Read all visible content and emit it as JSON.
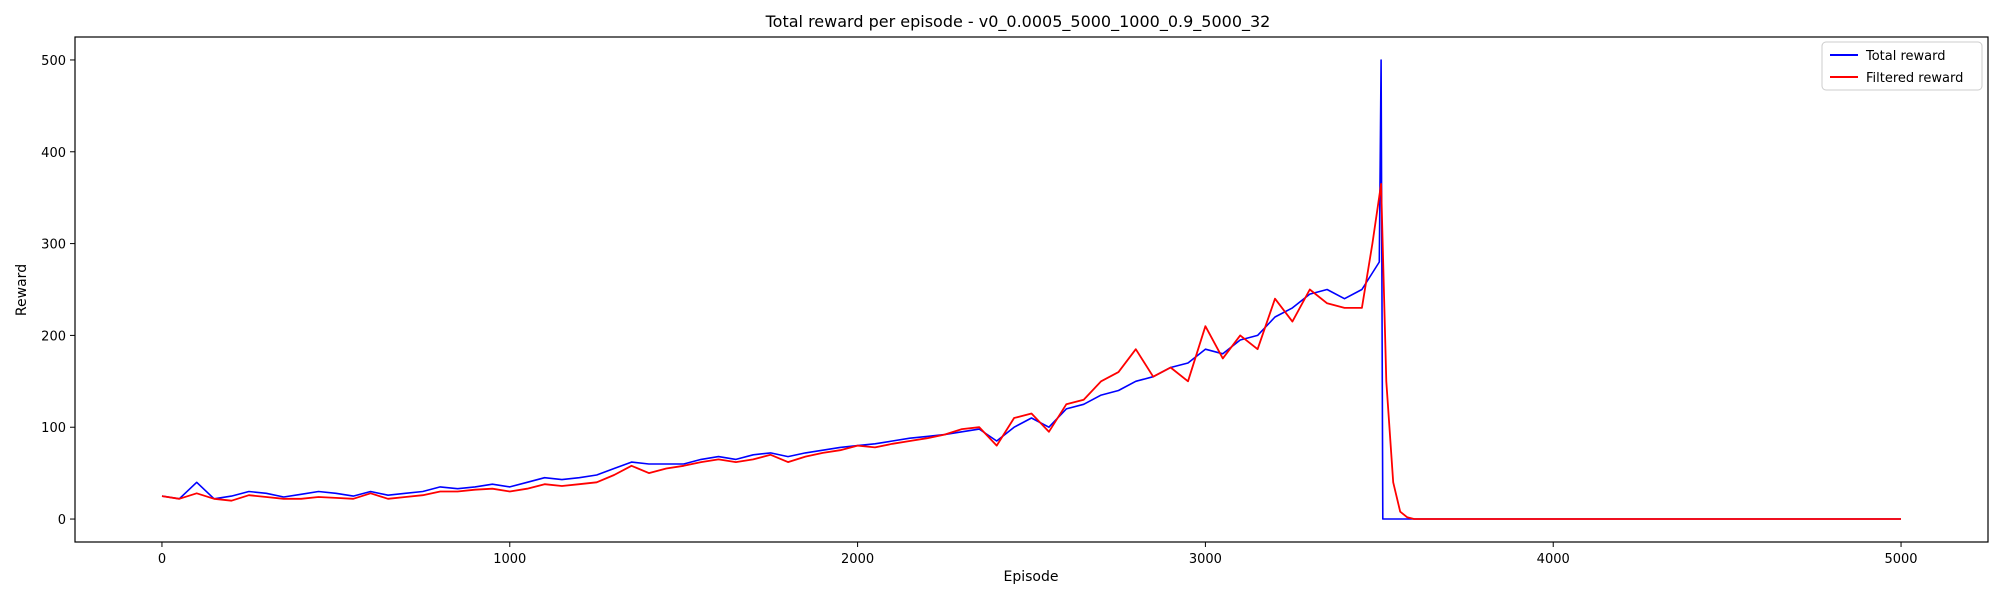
{
  "chart_data": {
    "type": "line",
    "title": "Total reward per episode - v0_0.0005_5000_1000_0.9_5000_32",
    "xlabel": "Episode",
    "ylabel": "Reward",
    "xlim": [
      -250,
      5250
    ],
    "ylim": [
      -25,
      525
    ],
    "xticks": [
      0,
      1000,
      2000,
      3000,
      4000,
      5000
    ],
    "yticks": [
      0,
      100,
      200,
      300,
      400,
      500
    ],
    "grid": false,
    "legend_position": "top-right",
    "series": [
      {
        "name": "Total reward",
        "color": "#0000ff",
        "x": [
          0,
          50,
          100,
          150,
          200,
          250,
          300,
          350,
          400,
          450,
          500,
          550,
          600,
          650,
          700,
          750,
          800,
          850,
          900,
          950,
          1000,
          1050,
          1100,
          1150,
          1200,
          1250,
          1300,
          1350,
          1400,
          1450,
          1500,
          1550,
          1600,
          1650,
          1700,
          1750,
          1800,
          1850,
          1900,
          1950,
          2000,
          2050,
          2100,
          2150,
          2200,
          2250,
          2300,
          2350,
          2400,
          2450,
          2500,
          2550,
          2600,
          2650,
          2700,
          2750,
          2800,
          2850,
          2900,
          2950,
          3000,
          3050,
          3100,
          3150,
          3200,
          3250,
          3300,
          3350,
          3400,
          3450,
          3500,
          3505,
          3510,
          4000,
          5000
        ],
        "y": [
          25,
          22,
          40,
          22,
          25,
          30,
          28,
          24,
          27,
          30,
          28,
          25,
          30,
          26,
          28,
          30,
          35,
          33,
          35,
          38,
          35,
          40,
          45,
          43,
          45,
          48,
          55,
          62,
          60,
          60,
          60,
          65,
          68,
          65,
          70,
          72,
          68,
          72,
          75,
          78,
          80,
          82,
          85,
          88,
          90,
          92,
          95,
          98,
          85,
          100,
          110,
          100,
          120,
          125,
          135,
          140,
          150,
          155,
          165,
          170,
          185,
          180,
          195,
          200,
          220,
          230,
          245,
          250,
          240,
          250,
          280,
          500,
          0,
          0,
          0
        ]
      },
      {
        "name": "Filtered reward",
        "color": "#ff0000",
        "x": [
          0,
          50,
          100,
          150,
          200,
          250,
          300,
          350,
          400,
          450,
          500,
          550,
          600,
          650,
          700,
          750,
          800,
          850,
          900,
          950,
          1000,
          1050,
          1100,
          1150,
          1200,
          1250,
          1300,
          1350,
          1400,
          1450,
          1500,
          1550,
          1600,
          1650,
          1700,
          1750,
          1800,
          1850,
          1900,
          1950,
          2000,
          2050,
          2100,
          2150,
          2200,
          2250,
          2300,
          2350,
          2400,
          2450,
          2500,
          2550,
          2600,
          2650,
          2700,
          2750,
          2800,
          2850,
          2900,
          2950,
          3000,
          3050,
          3100,
          3150,
          3200,
          3250,
          3300,
          3350,
          3400,
          3450,
          3480,
          3505,
          3520,
          3540,
          3560,
          3580,
          3600,
          4000,
          5000
        ],
        "y": [
          25,
          22,
          28,
          22,
          20,
          26,
          24,
          22,
          22,
          24,
          23,
          22,
          28,
          22,
          24,
          26,
          30,
          30,
          32,
          33,
          30,
          33,
          38,
          36,
          38,
          40,
          48,
          58,
          50,
          55,
          58,
          62,
          65,
          62,
          65,
          70,
          62,
          68,
          72,
          75,
          80,
          78,
          82,
          85,
          88,
          92,
          98,
          100,
          80,
          110,
          115,
          95,
          125,
          130,
          150,
          160,
          185,
          155,
          165,
          150,
          210,
          175,
          200,
          185,
          240,
          215,
          250,
          235,
          230,
          230,
          300,
          365,
          150,
          40,
          8,
          2,
          0,
          0,
          0
        ]
      }
    ]
  }
}
